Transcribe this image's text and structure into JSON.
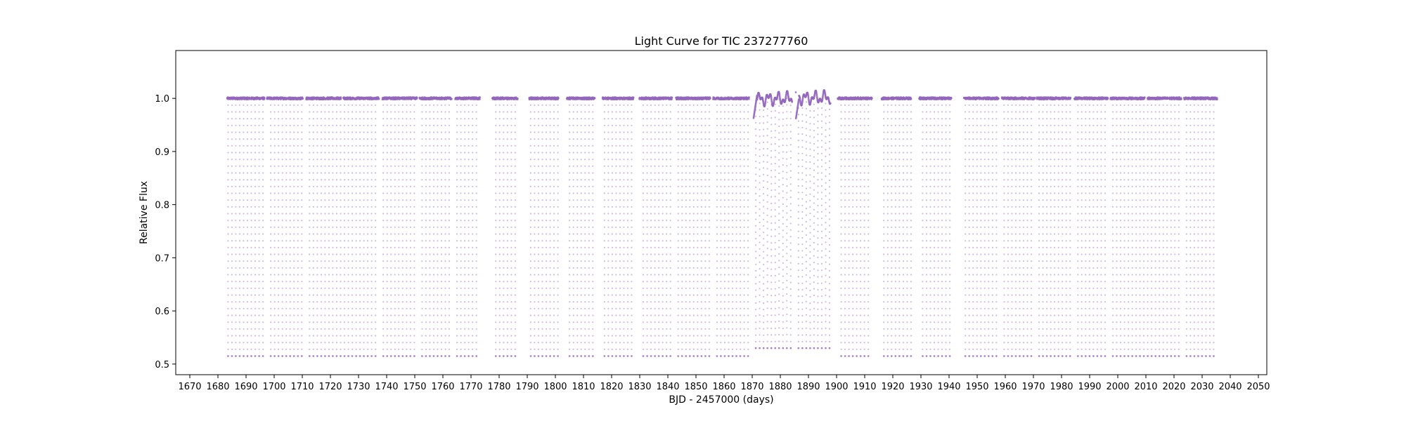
{
  "chart_data": {
    "type": "scatter",
    "title": "Light Curve for TIC 237277760",
    "xlabel": "BJD - 2457000 (days)",
    "ylabel": "Relative Flux",
    "xlim": [
      1665,
      2053
    ],
    "ylim": [
      0.48,
      1.09
    ],
    "x_ticks": [
      1670,
      1680,
      1690,
      1700,
      1710,
      1720,
      1730,
      1740,
      1750,
      1760,
      1770,
      1780,
      1790,
      1800,
      1810,
      1820,
      1830,
      1840,
      1850,
      1860,
      1870,
      1880,
      1890,
      1900,
      1910,
      1920,
      1930,
      1940,
      1950,
      1960,
      1970,
      1980,
      1990,
      2000,
      2010,
      2020,
      2030,
      2040,
      2050
    ],
    "y_ticks": [
      0.5,
      0.6,
      0.7,
      0.8,
      0.9,
      1.0
    ],
    "grid": false,
    "marker_color": "#9467bd",
    "baseline_flux": 1.0,
    "eclipse_period_days": 1.38,
    "eclipse_min_flux": 0.515,
    "observing_segments": [
      [
        1683.3,
        1696.6
      ],
      [
        1697.4,
        1710.2
      ],
      [
        1711.4,
        1723.8
      ],
      [
        1724.6,
        1737.3
      ],
      [
        1738.5,
        1750.8
      ],
      [
        1751.7,
        1763.1
      ],
      [
        1764.4,
        1773.2
      ],
      [
        1777.6,
        1786.6
      ],
      [
        1790.7,
        1801.1
      ],
      [
        1804.1,
        1814.0
      ],
      [
        1816.8,
        1827.8
      ],
      [
        1829.9,
        1841.5
      ],
      [
        1842.9,
        1855.1
      ],
      [
        1856.1,
        1868.9
      ],
      [
        1870.5,
        1884.2
      ],
      [
        1885.5,
        1897.8
      ],
      [
        1900.4,
        1912.6
      ],
      [
        1916.0,
        1926.5
      ],
      [
        1929.4,
        1940.8
      ],
      [
        1945.3,
        1957.6
      ],
      [
        1958.8,
        1970.6
      ],
      [
        1971.2,
        1983.2
      ],
      [
        1984.6,
        1996.5
      ],
      [
        1997.4,
        2009.6
      ],
      [
        2010.6,
        2022.6
      ],
      [
        2023.6,
        2035.4
      ]
    ],
    "anomalous_segment": {
      "x_range": [
        1870.5,
        1897.8
      ],
      "flux_range": [
        0.96,
        1.065
      ]
    }
  }
}
